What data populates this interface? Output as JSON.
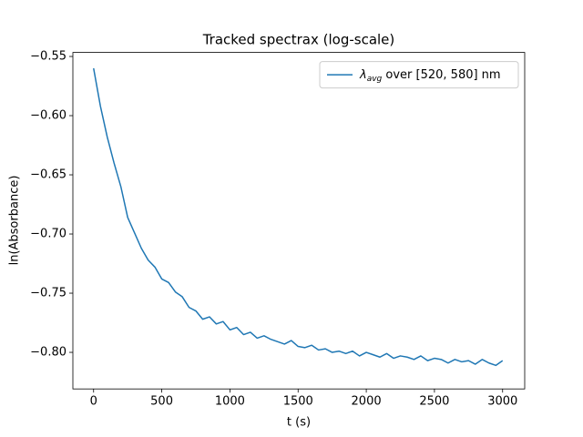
{
  "chart_data": {
    "type": "line",
    "title": "Tracked spectrax (log-scale)",
    "x_label": "t (s)",
    "y_label": "ln(Absorbance)",
    "x": [
      0,
      50,
      100,
      150,
      200,
      250,
      300,
      350,
      400,
      450,
      500,
      550,
      600,
      650,
      700,
      750,
      800,
      850,
      900,
      950,
      1000,
      1050,
      1100,
      1150,
      1200,
      1250,
      1300,
      1350,
      1400,
      1450,
      1500,
      1550,
      1600,
      1650,
      1700,
      1750,
      1800,
      1850,
      1900,
      1950,
      2000,
      2050,
      2100,
      2150,
      2200,
      2250,
      2300,
      2350,
      2400,
      2450,
      2500,
      2550,
      2600,
      2650,
      2700,
      2750,
      2800,
      2850,
      2900,
      2950,
      3000
    ],
    "series": [
      {
        "name": [
          "λ",
          "avg",
          " over [520, 580] nm"
        ],
        "color": "#1f77b4",
        "values": [
          -0.56,
          -0.592,
          -0.618,
          -0.64,
          -0.66,
          -0.686,
          -0.699,
          -0.712,
          -0.722,
          -0.728,
          -0.738,
          -0.741,
          -0.749,
          -0.753,
          -0.762,
          -0.765,
          -0.772,
          -0.77,
          -0.776,
          -0.774,
          -0.781,
          -0.779,
          -0.785,
          -0.783,
          -0.788,
          -0.786,
          -0.789,
          -0.791,
          -0.793,
          -0.79,
          -0.795,
          -0.796,
          -0.794,
          -0.798,
          -0.797,
          -0.8,
          -0.799,
          -0.801,
          -0.799,
          -0.803,
          -0.8,
          -0.802,
          -0.804,
          -0.801,
          -0.805,
          -0.803,
          -0.804,
          -0.806,
          -0.803,
          -0.807,
          -0.805,
          -0.806,
          -0.809,
          -0.806,
          -0.808,
          -0.807,
          -0.81,
          -0.806,
          -0.809,
          -0.811,
          -0.807
        ]
      }
    ],
    "xlim": [
      -152,
      3162
    ],
    "ylim": [
      -0.8309,
      -0.5466
    ],
    "xticks": [
      0,
      500,
      1000,
      1500,
      2000,
      2500,
      3000
    ],
    "yticks": [
      {
        "value": -0.8,
        "label": "−0.80"
      },
      {
        "value": -0.75,
        "label": "−0.75"
      },
      {
        "value": -0.7,
        "label": "−0.70"
      },
      {
        "value": -0.65,
        "label": "−0.65"
      },
      {
        "value": -0.6,
        "label": "−0.60"
      },
      {
        "value": -0.55,
        "label": "−0.55"
      }
    ],
    "legend": "upper right",
    "grid": false
  }
}
